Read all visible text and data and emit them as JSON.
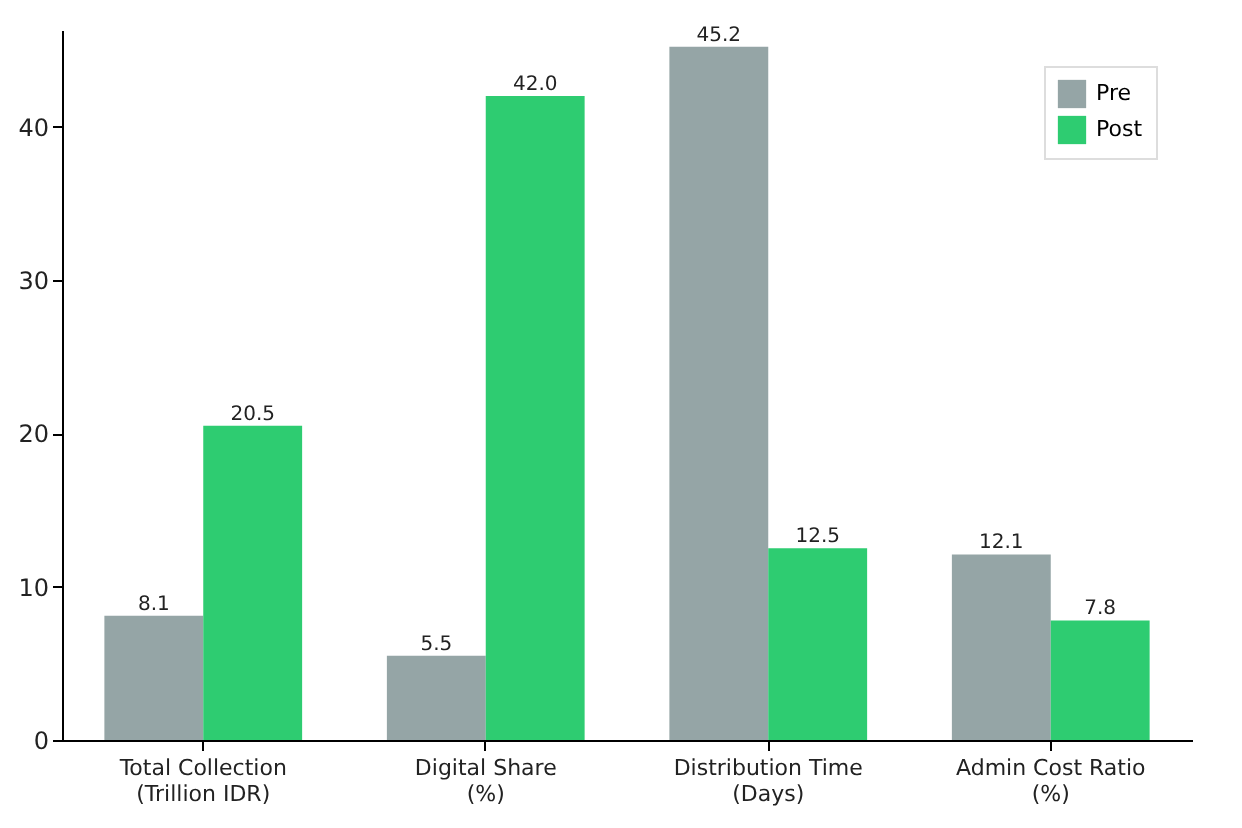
{
  "chart_data": {
    "type": "bar",
    "categories": [
      "Total Collection\n(Trillion IDR)",
      "Digital Share\n(%)",
      "Distribution Time\n(Days)",
      "Admin Cost Ratio\n(%)"
    ],
    "series": [
      {
        "name": "Pre",
        "color": "#95a5a6",
        "values": [
          8.1,
          5.5,
          45.2,
          12.1
        ],
        "value_labels": [
          "8.1",
          "5.5",
          "45.2",
          "12.1"
        ]
      },
      {
        "name": "Post",
        "color": "#2ecc71",
        "values": [
          20.5,
          42.0,
          12.5,
          7.8
        ],
        "value_labels": [
          "20.5",
          "42.0",
          "12.5",
          "7.8"
        ]
      }
    ],
    "ylim": [
      0,
      46.3
    ],
    "yticks": [
      0,
      10,
      20,
      30,
      40
    ],
    "grid": false,
    "legend": "top right"
  }
}
